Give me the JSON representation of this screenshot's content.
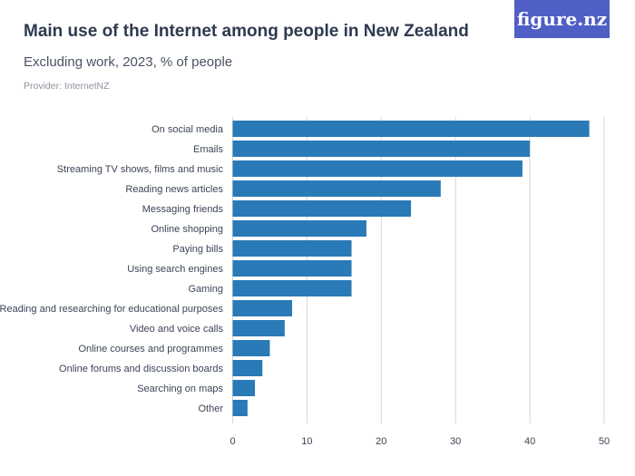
{
  "header": {
    "title": "Main use of the Internet among people in New Zealand",
    "subtitle": "Excluding work, 2023, % of people",
    "provider": "Provider: InternetNZ",
    "logo": "figure.nz"
  },
  "chart_data": {
    "type": "bar",
    "orientation": "horizontal",
    "title": "Main use of the Internet among people in New Zealand",
    "subtitle": "Excluding work, 2023, % of people",
    "categories": [
      "On social media",
      "Emails",
      "Streaming TV shows, films and music",
      "Reading news articles",
      "Messaging friends",
      "Online shopping",
      "Paying bills",
      "Using search engines",
      "Gaming",
      "Reading and researching for educational purposes",
      "Video and voice calls",
      "Online courses and programmes",
      "Online forums and discussion boards",
      "Searching on maps",
      "Other"
    ],
    "values": [
      48,
      40,
      39,
      28,
      24,
      18,
      16,
      16,
      16,
      8,
      7,
      5,
      4,
      3,
      2
    ],
    "xlim": [
      0,
      50
    ],
    "xticks": [
      "0",
      "10",
      "20",
      "30",
      "40",
      "50"
    ],
    "grid": true,
    "color": "#2a7ab7"
  }
}
